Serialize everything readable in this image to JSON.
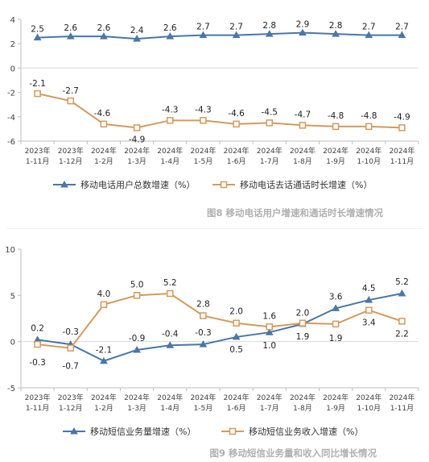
{
  "chart_data": [
    {
      "type": "line",
      "categories": [
        "2023年\n1-11月",
        "2023年\n1-12月",
        "2024年\n1-2月",
        "2024年\n1-3月",
        "2024年\n1-4月",
        "2024年\n1-5月",
        "2024年\n1-6月",
        "2024年\n1-7月",
        "2024年\n1-8月",
        "2024年\n1-9月",
        "2024年\n1-10月",
        "2024年\n1-11月"
      ],
      "series": [
        {
          "name": "移动电话用户总数增速（%）",
          "values": [
            2.5,
            2.6,
            2.6,
            2.4,
            2.6,
            2.7,
            2.7,
            2.8,
            2.9,
            2.8,
            2.7,
            2.7
          ],
          "marker": "triangle",
          "color": "#4a76a8",
          "labels": [
            "2.5",
            "2.6",
            "2.6",
            "2.4",
            "2.6",
            "2.7",
            "2.7",
            "2.8",
            "2.9",
            "2.8",
            "2.7",
            "2.7"
          ]
        },
        {
          "name": "移动电话去话通话时长增速（%）",
          "values": [
            -2.1,
            -2.7,
            -4.6,
            -4.9,
            -4.3,
            -4.3,
            -4.6,
            -4.5,
            -4.7,
            -4.8,
            -4.8,
            -4.9
          ],
          "marker": "square",
          "color": "#d39a5e",
          "labels": [
            "-2.1",
            "-2.7",
            "-4.6",
            "-4.9",
            "-4.3",
            "-4.3",
            "-4.6",
            "-4.5",
            "-4.7",
            "-4.8",
            "-4.8",
            "-4.9"
          ]
        }
      ],
      "yticks": [
        "4",
        "2",
        "0",
        "-2",
        "-4",
        "-6"
      ],
      "ylim": [
        -6,
        4
      ],
      "grid": false,
      "legend": "bottom",
      "caption": "图8 移动电话用户增速和通话时长增速情况"
    },
    {
      "type": "line",
      "categories": [
        "2023年\n1-11月",
        "2023年\n1-12月",
        "2024年\n1-2月",
        "2024年\n1-3月",
        "2024年\n1-4月",
        "2024年\n1-5月",
        "2024年\n1-6月",
        "2024年\n1-7月",
        "2024年\n1-8月",
        "2024年\n1-9月",
        "2024年\n1-10月",
        "2024年\n1-11月"
      ],
      "series": [
        {
          "name": "移动短信业务量增速（%）",
          "values": [
            0.2,
            -0.3,
            -2.1,
            -0.9,
            -0.4,
            -0.3,
            0.5,
            1.0,
            1.9,
            3.6,
            4.5,
            5.2
          ],
          "marker": "triangle",
          "color": "#4a76a8",
          "labels": [
            "0.2",
            "-0.3",
            "-2.1",
            "-0.9",
            "-0.4",
            "-0.3",
            "0.5",
            "1.0",
            "1.9",
            "3.6",
            "4.5",
            "5.2"
          ]
        },
        {
          "name": "移动短信业务收入增速（%）",
          "values": [
            -0.3,
            -0.7,
            4.0,
            5.0,
            5.2,
            2.8,
            2.0,
            1.6,
            2.0,
            1.9,
            3.4,
            2.2
          ],
          "marker": "square",
          "color": "#d39a5e",
          "labels": [
            "-0.3",
            "-0.7",
            "4.0",
            "5.0",
            "5.2",
            "2.8",
            "2.0",
            "1.6",
            "2.0",
            "1.9",
            "3.4",
            "2.2"
          ]
        }
      ],
      "yticks": [
        "10",
        "5",
        "0",
        "-5"
      ],
      "ylim": [
        -5,
        10
      ],
      "grid": false,
      "legend": "bottom",
      "caption": "图9 移动短信业务量和收入同比增长情况"
    }
  ]
}
